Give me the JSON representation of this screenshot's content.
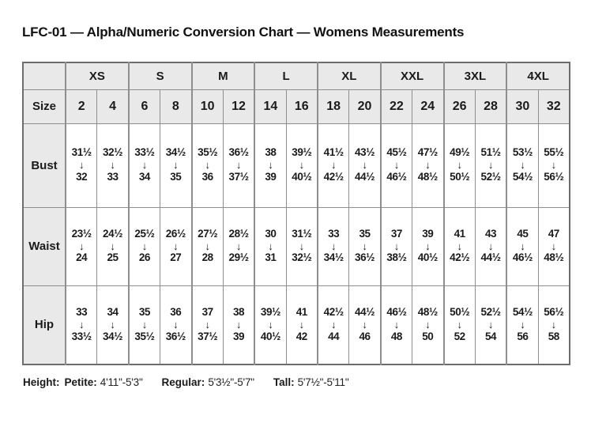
{
  "title": "LFC-01 — Alpha/Numeric Conversion Chart — Womens Measurements",
  "table": {
    "corner_label": "",
    "size_row_label": "Size",
    "arrow": "↓",
    "groups": [
      {
        "label": "XS",
        "sizes": [
          "2",
          "4"
        ]
      },
      {
        "label": "S",
        "sizes": [
          "6",
          "8"
        ]
      },
      {
        "label": "M",
        "sizes": [
          "10",
          "12"
        ]
      },
      {
        "label": "L",
        "sizes": [
          "14",
          "16"
        ]
      },
      {
        "label": "XL",
        "sizes": [
          "18",
          "20"
        ]
      },
      {
        "label": "XXL",
        "sizes": [
          "22",
          "24"
        ]
      },
      {
        "label": "3XL",
        "sizes": [
          "26",
          "28"
        ]
      },
      {
        "label": "4XL",
        "sizes": [
          "30",
          "32"
        ]
      }
    ],
    "measurement_rows": [
      {
        "label": "Bust",
        "ranges": [
          [
            "31½",
            "32"
          ],
          [
            "32½",
            "33"
          ],
          [
            "33½",
            "34"
          ],
          [
            "34½",
            "35"
          ],
          [
            "35½",
            "36"
          ],
          [
            "36½",
            "37½"
          ],
          [
            "38",
            "39"
          ],
          [
            "39½",
            "40½"
          ],
          [
            "41½",
            "42½"
          ],
          [
            "43½",
            "44½"
          ],
          [
            "45½",
            "46½"
          ],
          [
            "47½",
            "48½"
          ],
          [
            "49½",
            "50½"
          ],
          [
            "51½",
            "52½"
          ],
          [
            "53½",
            "54½"
          ],
          [
            "55½",
            "56½"
          ]
        ]
      },
      {
        "label": "Waist",
        "ranges": [
          [
            "23½",
            "24"
          ],
          [
            "24½",
            "25"
          ],
          [
            "25½",
            "26"
          ],
          [
            "26½",
            "27"
          ],
          [
            "27½",
            "28"
          ],
          [
            "28½",
            "29½"
          ],
          [
            "30",
            "31"
          ],
          [
            "31½",
            "32½"
          ],
          [
            "33",
            "34½"
          ],
          [
            "35",
            "36½"
          ],
          [
            "37",
            "38½"
          ],
          [
            "39",
            "40½"
          ],
          [
            "41",
            "42½"
          ],
          [
            "43",
            "44½"
          ],
          [
            "45",
            "46½"
          ],
          [
            "47",
            "48½"
          ]
        ]
      },
      {
        "label": "Hip",
        "ranges": [
          [
            "33",
            "33½"
          ],
          [
            "34",
            "34½"
          ],
          [
            "35",
            "35½"
          ],
          [
            "36",
            "36½"
          ],
          [
            "37",
            "37½"
          ],
          [
            "38",
            "39"
          ],
          [
            "39½",
            "40½"
          ],
          [
            "41",
            "42"
          ],
          [
            "42½",
            "44"
          ],
          [
            "44½",
            "46"
          ],
          [
            "46½",
            "48"
          ],
          [
            "48½",
            "50"
          ],
          [
            "50½",
            "52"
          ],
          [
            "52½",
            "54"
          ],
          [
            "54½",
            "56"
          ],
          [
            "56½",
            "58"
          ]
        ]
      }
    ]
  },
  "footer": {
    "height_label": "Height:",
    "entries": [
      {
        "label": "Petite:",
        "value": "4'11\"-5'3\""
      },
      {
        "label": "Regular:",
        "value": "5'3½\"-5'7\""
      },
      {
        "label": "Tall:",
        "value": "5'7½\"-5'11\""
      }
    ]
  },
  "colors": {
    "header_background": "#e9e9e9",
    "cell_background": "#ffffff",
    "inner_border": "#8e8e8e",
    "outer_border": "#6d6d6d",
    "text": "#1a1a1a"
  }
}
